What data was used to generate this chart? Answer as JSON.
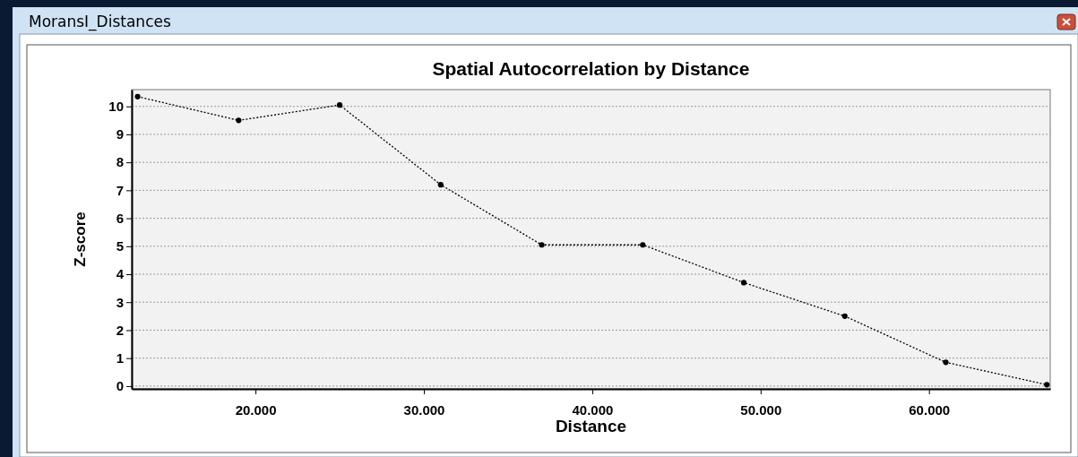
{
  "chart_data": {
    "type": "line",
    "title": "Spatial Autocorrelation by Distance",
    "xlabel": "Distance",
    "ylabel": "Z-score",
    "annotations": [
      "MoransI_Distances"
    ],
    "x": [
      13000,
      19000,
      25000,
      31000,
      37000,
      43000,
      49000,
      55000,
      61000,
      67000
    ],
    "series": [
      {
        "color": "#000000",
        "values": [
          10.35,
          9.5,
          10.05,
          7.2,
          5.05,
          5.05,
          3.7,
          2.5,
          0.85,
          0.05
        ]
      }
    ],
    "xlim": [
      12650,
      67200
    ],
    "ylim": [
      -0.1,
      10.6
    ],
    "xticks": [
      {
        "value": 20000,
        "label": "20.000"
      },
      {
        "value": 30000,
        "label": "30.000"
      },
      {
        "value": 40000,
        "label": "40.000"
      },
      {
        "value": 50000,
        "label": "50.000"
      },
      {
        "value": 60000,
        "label": "60.000"
      }
    ],
    "yticks": [
      0,
      1,
      2,
      3,
      4,
      5,
      6,
      7,
      8,
      9,
      10
    ],
    "grid": "y",
    "marker": "circle",
    "line_style": "dotted"
  }
}
